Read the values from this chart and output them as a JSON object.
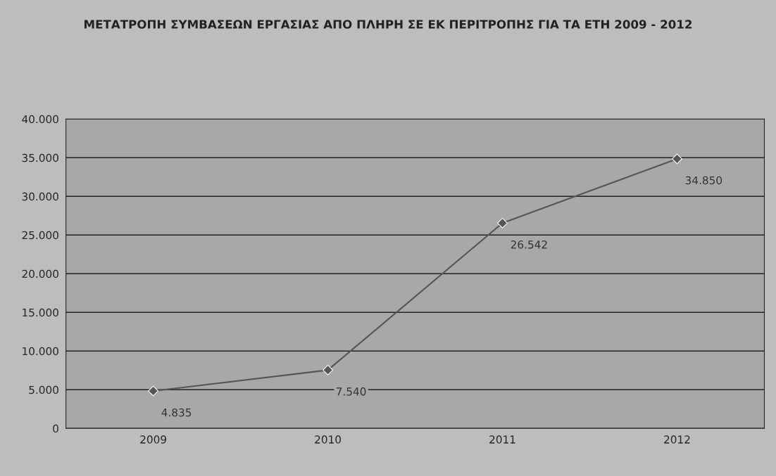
{
  "chart_data": {
    "type": "line",
    "title": "ΜΕΤΑΤΡΟΠΗ ΣΥΜΒΑΣΕΩΝ ΕΡΓΑΣΙΑΣ ΑΠΟ ΠΛΗΡΗ ΣΕ ΕΚ ΠΕΡΙΤΡΟΠΗΣ ΓΙΑ ΤΑ ΕΤΗ 2009 - 2012",
    "categories": [
      "2009",
      "2010",
      "2011",
      "2012"
    ],
    "series": [
      {
        "color": "#555555",
        "values": [
          4835,
          7540,
          26542,
          34850
        ],
        "value_labels": [
          "4.835",
          "7.540",
          "26.542",
          "34.850"
        ]
      }
    ],
    "ylim": [
      0,
      40000
    ],
    "yticks": [
      0,
      {
        "value": 5000,
        "label": "5.000"
      },
      {
        "value": 10000,
        "label": "10.000"
      },
      {
        "value": 15000,
        "label": "15.000"
      },
      {
        "value": 20000,
        "label": "20.000"
      },
      {
        "value": 25000,
        "label": "25.000"
      },
      {
        "value": 30000,
        "label": "30.000"
      },
      {
        "value": 35000,
        "label": "35.000"
      },
      {
        "value": 40000,
        "label": "40.000"
      }
    ],
    "grid": "y",
    "marker": "diamond",
    "line_style": "solid"
  }
}
